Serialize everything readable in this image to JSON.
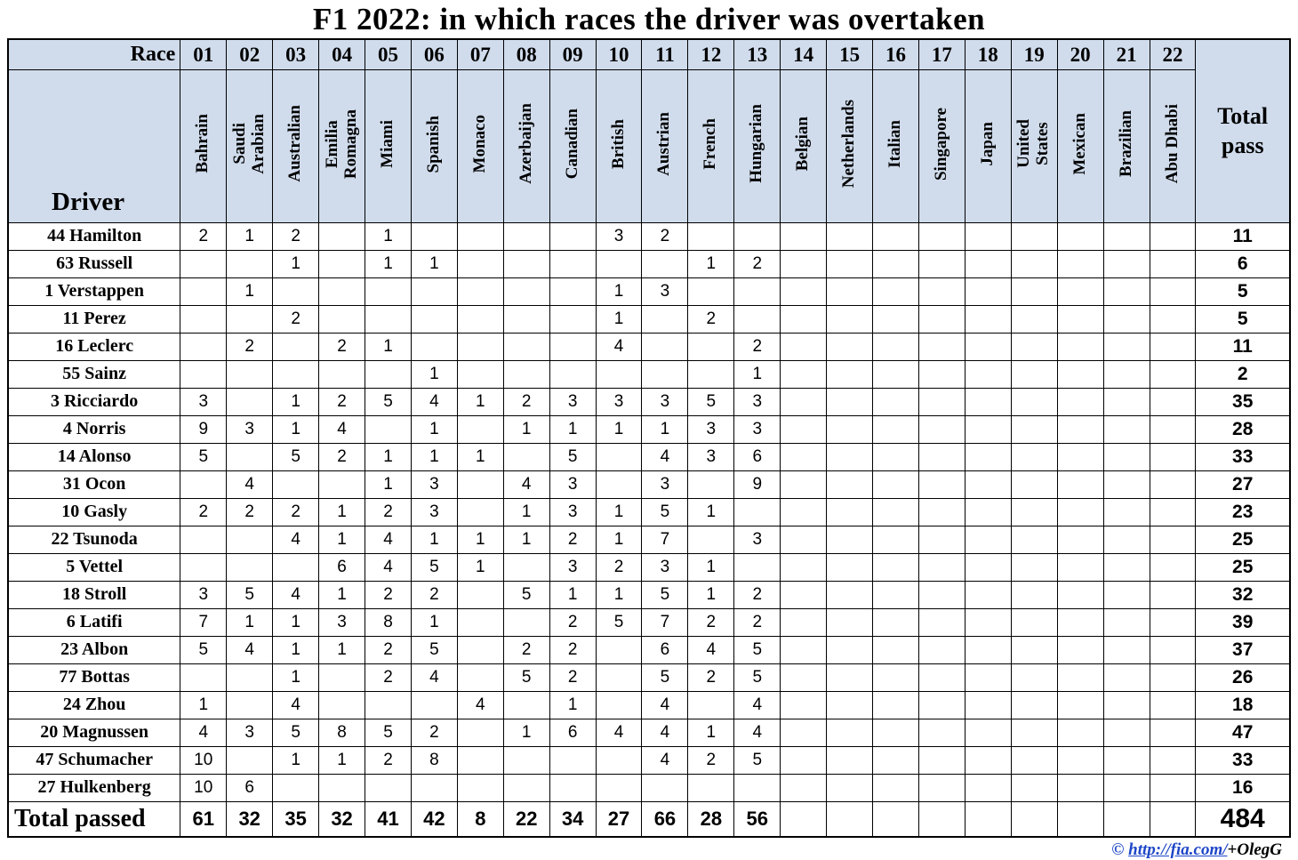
{
  "title": "F1 2022: in which races the driver was overtaken",
  "colors": {
    "header_bg": "#d0dcec",
    "border": "#000000",
    "link_blue": "#1e46c8"
  },
  "footer": {
    "copyright": "©",
    "link": "http://fia.com/",
    "suffix": "+OlegG"
  },
  "chart_data": {
    "type": "table",
    "title": "F1 2022: in which races the driver was overtaken",
    "race_label": "Race",
    "driver_label": "Driver",
    "total_header": "Total\npass",
    "race_numbers": [
      "01",
      "02",
      "03",
      "04",
      "05",
      "06",
      "07",
      "08",
      "09",
      "10",
      "11",
      "12",
      "13",
      "14",
      "15",
      "16",
      "17",
      "18",
      "19",
      "20",
      "21",
      "22"
    ],
    "race_names": [
      "Bahrain",
      "Saudi\nArabian",
      "Australian",
      "Emilia\nRomagna",
      "Miami",
      "Spanish",
      "Monaco",
      "Azerbaijan",
      "Canadian",
      "British",
      "Austrian",
      "French",
      "Hungarian",
      "Belgian",
      "Netherlands",
      "Italian",
      "Singapore",
      "Japan",
      "United\nStates",
      "Mexican",
      "Brazilian",
      "Abu Dhabi"
    ],
    "rows": [
      {
        "driver": "44 Hamilton",
        "values": [
          "2",
          "1",
          "2",
          "",
          "1",
          "",
          "",
          "",
          "",
          "3",
          "2",
          "",
          "",
          "",
          "",
          "",
          "",
          "",
          "",
          "",
          "",
          ""
        ],
        "total": "11"
      },
      {
        "driver": "63 Russell",
        "values": [
          "",
          "",
          "1",
          "",
          "1",
          "1",
          "",
          "",
          "",
          "",
          "",
          "1",
          "2",
          "",
          "",
          "",
          "",
          "",
          "",
          "",
          "",
          ""
        ],
        "total": "6"
      },
      {
        "driver": "1 Verstappen",
        "values": [
          "",
          "1",
          "",
          "",
          "",
          "",
          "",
          "",
          "",
          "1",
          "3",
          "",
          "",
          "",
          "",
          "",
          "",
          "",
          "",
          "",
          "",
          ""
        ],
        "total": "5"
      },
      {
        "driver": "11 Perez",
        "values": [
          "",
          "",
          "2",
          "",
          "",
          "",
          "",
          "",
          "",
          "1",
          "",
          "2",
          "",
          "",
          "",
          "",
          "",
          "",
          "",
          "",
          "",
          ""
        ],
        "total": "5"
      },
      {
        "driver": "16 Leclerc",
        "values": [
          "",
          "2",
          "",
          "2",
          "1",
          "",
          "",
          "",
          "",
          "4",
          "",
          "",
          "2",
          "",
          "",
          "",
          "",
          "",
          "",
          "",
          "",
          ""
        ],
        "total": "11"
      },
      {
        "driver": "55 Sainz",
        "values": [
          "",
          "",
          "",
          "",
          "",
          "1",
          "",
          "",
          "",
          "",
          "",
          "",
          "1",
          "",
          "",
          "",
          "",
          "",
          "",
          "",
          "",
          ""
        ],
        "total": "2"
      },
      {
        "driver": "3 Ricciardo",
        "values": [
          "3",
          "",
          "1",
          "2",
          "5",
          "4",
          "1",
          "2",
          "3",
          "3",
          "3",
          "5",
          "3",
          "",
          "",
          "",
          "",
          "",
          "",
          "",
          "",
          ""
        ],
        "total": "35"
      },
      {
        "driver": "4 Norris",
        "values": [
          "9",
          "3",
          "1",
          "4",
          "",
          "1",
          "",
          "1",
          "1",
          "1",
          "1",
          "3",
          "3",
          "",
          "",
          "",
          "",
          "",
          "",
          "",
          "",
          ""
        ],
        "total": "28"
      },
      {
        "driver": "14 Alonso",
        "values": [
          "5",
          "",
          "5",
          "2",
          "1",
          "1",
          "1",
          "",
          "5",
          "",
          "4",
          "3",
          "6",
          "",
          "",
          "",
          "",
          "",
          "",
          "",
          "",
          ""
        ],
        "total": "33"
      },
      {
        "driver": "31 Ocon",
        "values": [
          "",
          "4",
          "",
          "",
          "1",
          "3",
          "",
          "4",
          "3",
          "",
          "3",
          "",
          "9",
          "",
          "",
          "",
          "",
          "",
          "",
          "",
          "",
          ""
        ],
        "total": "27"
      },
      {
        "driver": "10 Gasly",
        "values": [
          "2",
          "2",
          "2",
          "1",
          "2",
          "3",
          "",
          "1",
          "3",
          "1",
          "5",
          "1",
          "",
          "",
          "",
          "",
          "",
          "",
          "",
          "",
          "",
          ""
        ],
        "total": "23"
      },
      {
        "driver": "22 Tsunoda",
        "values": [
          "",
          "",
          "4",
          "1",
          "4",
          "1",
          "1",
          "1",
          "2",
          "1",
          "7",
          "",
          "3",
          "",
          "",
          "",
          "",
          "",
          "",
          "",
          "",
          ""
        ],
        "total": "25"
      },
      {
        "driver": "5 Vettel",
        "values": [
          "",
          "",
          "",
          "6",
          "4",
          "5",
          "1",
          "",
          "3",
          "2",
          "3",
          "1",
          "",
          "",
          "",
          "",
          "",
          "",
          "",
          "",
          "",
          ""
        ],
        "total": "25"
      },
      {
        "driver": "18 Stroll",
        "values": [
          "3",
          "5",
          "4",
          "1",
          "2",
          "2",
          "",
          "5",
          "1",
          "1",
          "5",
          "1",
          "2",
          "",
          "",
          "",
          "",
          "",
          "",
          "",
          "",
          ""
        ],
        "total": "32"
      },
      {
        "driver": "6 Latifi",
        "values": [
          "7",
          "1",
          "1",
          "3",
          "8",
          "1",
          "",
          "",
          "2",
          "5",
          "7",
          "2",
          "2",
          "",
          "",
          "",
          "",
          "",
          "",
          "",
          "",
          ""
        ],
        "total": "39"
      },
      {
        "driver": "23 Albon",
        "values": [
          "5",
          "4",
          "1",
          "1",
          "2",
          "5",
          "",
          "2",
          "2",
          "",
          "6",
          "4",
          "5",
          "",
          "",
          "",
          "",
          "",
          "",
          "",
          "",
          ""
        ],
        "total": "37"
      },
      {
        "driver": "77 Bottas",
        "values": [
          "",
          "",
          "1",
          "",
          "2",
          "4",
          "",
          "5",
          "2",
          "",
          "5",
          "2",
          "5",
          "",
          "",
          "",
          "",
          "",
          "",
          "",
          "",
          ""
        ],
        "total": "26"
      },
      {
        "driver": "24 Zhou",
        "values": [
          "1",
          "",
          "4",
          "",
          "",
          "",
          "4",
          "",
          "1",
          "",
          "4",
          "",
          "4",
          "",
          "",
          "",
          "",
          "",
          "",
          "",
          "",
          ""
        ],
        "total": "18"
      },
      {
        "driver": "20 Magnussen",
        "values": [
          "4",
          "3",
          "5",
          "8",
          "5",
          "2",
          "",
          "1",
          "6",
          "4",
          "4",
          "1",
          "4",
          "",
          "",
          "",
          "",
          "",
          "",
          "",
          "",
          ""
        ],
        "total": "47"
      },
      {
        "driver": "47 Schumacher",
        "values": [
          "10",
          "",
          "1",
          "1",
          "2",
          "8",
          "",
          "",
          "",
          "",
          "4",
          "2",
          "5",
          "",
          "",
          "",
          "",
          "",
          "",
          "",
          "",
          ""
        ],
        "total": "33"
      },
      {
        "driver": "27 Hulkenberg",
        "values": [
          "10",
          "6",
          "",
          "",
          "",
          "",
          "",
          "",
          "",
          "",
          "",
          "",
          "",
          "",
          "",
          "",
          "",
          "",
          "",
          "",
          "",
          ""
        ],
        "total": "16"
      }
    ],
    "total_row": {
      "label": "Total passed",
      "values": [
        "61",
        "32",
        "35",
        "32",
        "41",
        "42",
        "8",
        "22",
        "34",
        "27",
        "66",
        "28",
        "56",
        "",
        "",
        "",
        "",
        "",
        "",
        "",
        "",
        ""
      ],
      "total": "484"
    }
  }
}
